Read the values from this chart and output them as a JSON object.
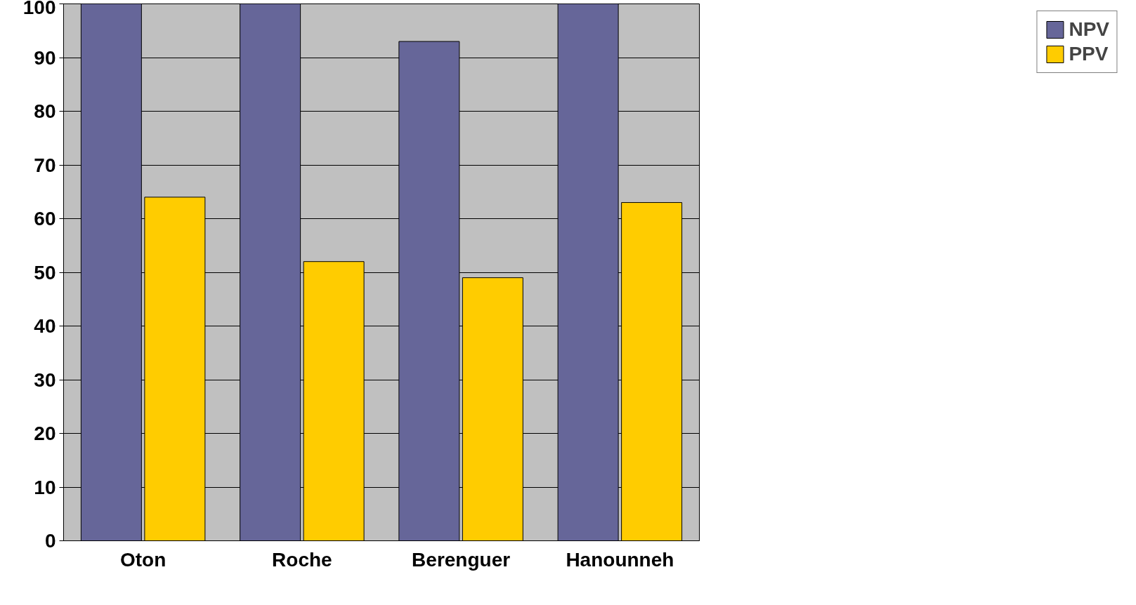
{
  "chart_data": {
    "type": "bar",
    "categories": [
      "Oton",
      "Roche",
      "Berenguer",
      "Hanounneh"
    ],
    "series": [
      {
        "name": "NPV",
        "color": "#666699",
        "values": [
          100,
          100,
          93,
          100
        ]
      },
      {
        "name": "PPV",
        "color": "#ffcc00",
        "values": [
          64,
          52,
          49,
          63
        ]
      }
    ],
    "ylim": [
      0,
      100
    ],
    "yticks": [
      0,
      10,
      20,
      30,
      40,
      50,
      60,
      70,
      80,
      90,
      100
    ],
    "grid": "y",
    "legend": "right"
  }
}
